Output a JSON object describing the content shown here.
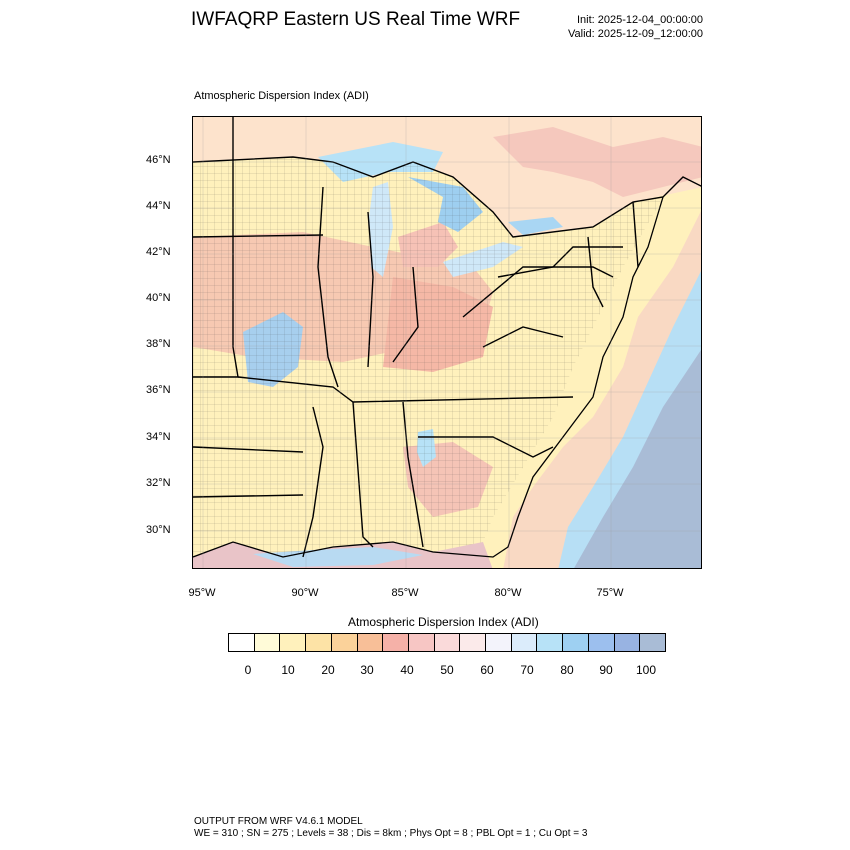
{
  "title": "IWFAQRP Eastern US Real Time WRF",
  "init": "Init: 2025-12-04_00:00:00",
  "valid": "Valid: 2025-12-09_12:00:00",
  "map": {
    "subtitle": "Atmospheric Dispersion Index   (ADI)",
    "lat_labels": [
      "46°N",
      "44°N",
      "42°N",
      "40°N",
      "38°N",
      "36°N",
      "34°N",
      "32°N",
      "30°N"
    ],
    "lon_labels": [
      "95°W",
      "90°W",
      "85°W",
      "80°W",
      "75°W"
    ]
  },
  "colorbar": {
    "title": "Atmospheric Dispersion Index  (ADI)",
    "ticks": [
      "0",
      "10",
      "20",
      "30",
      "40",
      "50",
      "60",
      "70",
      "80",
      "90",
      "100"
    ],
    "colors": [
      "#ffffff",
      "#fffbd8",
      "#fff1bc",
      "#fde3a6",
      "#fbd29a",
      "#f8bf98",
      "#f5b1a8",
      "#f7c6c4",
      "#fadada",
      "#fbeaea",
      "#f3f3fb",
      "#dbecfb",
      "#b7e2f7",
      "#9ed0f2",
      "#9cbfee",
      "#98b3e2",
      "#a9bcd6"
    ]
  },
  "footer": {
    "line1": "OUTPUT FROM WRF V4.6.1 MODEL",
    "line2": "WE = 310 ; SN = 275 ; Levels = 38 ; Dis = 8km ; Phys Opt = 8 ; PBL Opt = 1 ; Cu Opt = 3"
  }
}
